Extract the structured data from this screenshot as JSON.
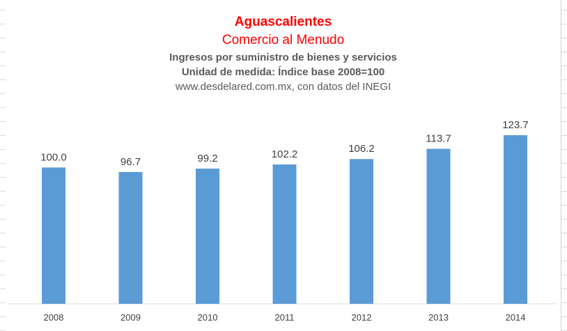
{
  "header": {
    "title": "Aguascalientes",
    "subtitle": "Comercio al Menudo",
    "line3": "Ingresos por suministro de bienes y servicios",
    "line4": "Unidad de medida: Índice base 2008=100",
    "line5": "www.desdelared.com.mx, con datos del INEGI"
  },
  "colors": {
    "bar": "#5b9bd5",
    "title": "#ff0000",
    "text": "#595959",
    "axis": "#d9d9d9"
  },
  "chart_data": {
    "type": "bar",
    "categories": [
      "2008",
      "2009",
      "2010",
      "2011",
      "2012",
      "2013",
      "2014"
    ],
    "values": [
      100.0,
      96.7,
      99.2,
      102.2,
      106.2,
      113.7,
      123.7
    ],
    "labels": [
      "100.0",
      "96.7",
      "99.2",
      "102.2",
      "106.2",
      "113.7",
      "123.7"
    ],
    "title": "Aguascalientes",
    "subtitle": "Comercio al Menudo",
    "xlabel": "",
    "ylabel": "",
    "ylim": [
      0,
      123.7
    ],
    "grid": false,
    "legend": "none"
  }
}
